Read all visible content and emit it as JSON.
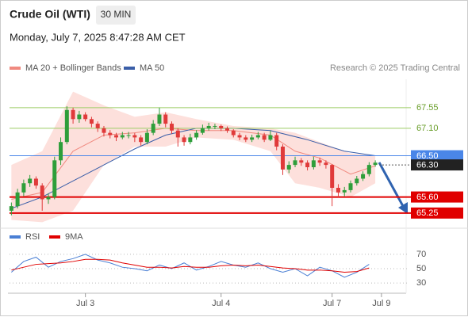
{
  "chart_data": {
    "type": "candlestick",
    "title": "Crude Oil (WTI)",
    "timeframe": "30 MIN",
    "subtitle": "Monday, July 7, 2025 8:47:28 AM CET",
    "credit": "Research © 2025 Trading Central",
    "up_color": "#2e9e3a",
    "down_color": "#e03a3a",
    "xlim": [
      -0.3,
      64
    ],
    "ylim": [
      64.97,
      68.17
    ],
    "xticks": [
      {
        "value": 12,
        "label": "Jul 3"
      },
      {
        "value": 34,
        "label": "Jul 4"
      },
      {
        "value": 52,
        "label": "Jul 7"
      },
      {
        "value": 60,
        "label": "Jul 9"
      }
    ],
    "ohlc": [
      [
        65.3,
        65.48,
        65.2,
        65.4
      ],
      [
        65.4,
        65.78,
        65.35,
        65.7
      ],
      [
        65.7,
        65.98,
        65.62,
        65.9
      ],
      [
        65.9,
        66.08,
        65.82,
        66.0
      ],
      [
        66.0,
        66.05,
        65.78,
        65.85
      ],
      [
        65.85,
        65.9,
        65.3,
        65.55
      ],
      [
        65.55,
        65.68,
        65.45,
        65.6
      ],
      [
        65.6,
        66.48,
        65.55,
        66.4
      ],
      [
        66.4,
        66.9,
        66.3,
        66.8
      ],
      [
        66.8,
        67.58,
        66.75,
        67.5
      ],
      [
        67.5,
        67.55,
        67.2,
        67.3
      ],
      [
        67.3,
        67.48,
        67.22,
        67.4
      ],
      [
        67.4,
        67.45,
        67.25,
        67.3
      ],
      [
        67.3,
        67.35,
        67.12,
        67.2
      ],
      [
        67.2,
        67.25,
        67.02,
        67.1
      ],
      [
        67.1,
        67.15,
        66.92,
        67.0
      ],
      [
        67.0,
        67.06,
        66.88,
        66.95
      ],
      [
        66.95,
        67.0,
        66.82,
        66.9
      ],
      [
        66.9,
        67.02,
        66.86,
        66.95
      ],
      [
        66.95,
        67.02,
        66.88,
        66.95
      ],
      [
        66.95,
        67.0,
        66.8,
        66.9
      ],
      [
        66.9,
        66.95,
        66.72,
        66.8
      ],
      [
        66.8,
        67.08,
        66.75,
        67.0
      ],
      [
        67.0,
        67.28,
        66.95,
        67.2
      ],
      [
        67.2,
        67.55,
        67.15,
        67.4
      ],
      [
        67.4,
        67.45,
        67.12,
        67.2
      ],
      [
        67.2,
        67.25,
        66.98,
        67.05
      ],
      [
        67.05,
        67.1,
        66.7,
        66.9
      ],
      [
        66.9,
        66.95,
        66.72,
        66.8
      ],
      [
        66.8,
        66.98,
        66.75,
        66.9
      ],
      [
        66.9,
        67.06,
        66.85,
        67.0
      ],
      [
        67.0,
        67.18,
        66.96,
        67.1
      ],
      [
        67.1,
        67.22,
        67.05,
        67.15
      ],
      [
        67.15,
        67.2,
        67.08,
        67.15
      ],
      [
        67.15,
        67.18,
        67.04,
        67.1
      ],
      [
        67.1,
        67.14,
        67.0,
        67.05
      ],
      [
        67.05,
        67.08,
        66.9,
        66.95
      ],
      [
        66.95,
        67.0,
        66.84,
        66.9
      ],
      [
        66.9,
        66.95,
        66.8,
        66.85
      ],
      [
        66.85,
        66.96,
        66.8,
        66.9
      ],
      [
        66.9,
        67.02,
        66.86,
        66.95
      ],
      [
        66.95,
        67.0,
        66.8,
        66.85
      ],
      [
        66.85,
        67.05,
        66.82,
        66.95
      ],
      [
        66.95,
        67.0,
        66.62,
        66.7
      ],
      [
        66.7,
        66.75,
        66.08,
        66.2
      ],
      [
        66.2,
        66.38,
        66.12,
        66.3
      ],
      [
        66.3,
        66.48,
        66.25,
        66.4
      ],
      [
        66.4,
        66.45,
        66.28,
        66.35
      ],
      [
        66.35,
        66.4,
        66.18,
        66.25
      ],
      [
        66.25,
        66.48,
        66.2,
        66.4
      ],
      [
        66.4,
        66.46,
        66.28,
        66.35
      ],
      [
        66.35,
        66.4,
        66.22,
        66.3
      ],
      [
        66.3,
        66.32,
        65.4,
        65.8
      ],
      [
        65.8,
        65.88,
        65.58,
        65.7
      ],
      [
        65.7,
        65.82,
        65.62,
        65.75
      ],
      [
        65.75,
        65.96,
        65.7,
        65.9
      ],
      [
        65.9,
        66.06,
        65.85,
        66.0
      ],
      [
        66.0,
        66.16,
        65.95,
        66.1
      ],
      [
        66.1,
        66.36,
        66.05,
        66.3
      ],
      [
        66.3,
        66.4,
        66.26,
        66.35
      ]
    ],
    "series": [
      {
        "name": "MA 20 + Bollinger Bands",
        "color": "#f08a80",
        "band_color": "#fde0dc",
        "x": [
          0,
          5,
          10,
          15,
          20,
          25,
          30,
          36,
          42,
          46,
          50,
          55,
          59
        ],
        "values": [
          65.55,
          65.7,
          66.6,
          66.95,
          67.0,
          67.1,
          67.05,
          67.05,
          66.95,
          66.6,
          66.45,
          66.1,
          66.28
        ],
        "upper": [
          66.3,
          66.6,
          67.9,
          67.6,
          67.35,
          67.45,
          67.3,
          67.15,
          67.1,
          67.0,
          66.8,
          66.55,
          66.5
        ],
        "lower": [
          65.1,
          65.05,
          65.3,
          66.3,
          66.7,
          66.7,
          66.9,
          66.85,
          66.6,
          65.9,
          65.8,
          65.6,
          65.9
        ]
      },
      {
        "name": "MA 50",
        "color": "#3a5ea8",
        "x": [
          0,
          5,
          10,
          15,
          20,
          25,
          30,
          36,
          42,
          48,
          54,
          59
        ],
        "values": [
          65.35,
          65.6,
          65.95,
          66.3,
          66.65,
          66.95,
          67.1,
          67.1,
          67.05,
          66.85,
          66.6,
          66.5
        ]
      }
    ],
    "levels": [
      {
        "value": 67.55,
        "color": "#9ccc65",
        "style": "text"
      },
      {
        "value": 67.1,
        "label": "67.10",
        "color": "#9ccc65",
        "style": "text"
      },
      {
        "value": 66.5,
        "label": "66.50",
        "color": "#4a86e8",
        "style": "box"
      },
      {
        "value": 66.3,
        "label": "66.30",
        "color": "#222222",
        "style": "dotted"
      },
      {
        "value": 65.6,
        "label": "65.60",
        "color": "#e00000",
        "style": "box"
      },
      {
        "value": 65.25,
        "color": "#e00000",
        "style": "box"
      }
    ],
    "rsi_panel": {
      "ylim": [
        18,
        82
      ],
      "yticks": [
        70,
        50,
        30
      ],
      "series": [
        {
          "name": "RSI",
          "color": "#4a7fd4",
          "x": [
            0,
            2,
            4,
            6,
            8,
            10,
            12,
            14,
            16,
            18,
            20,
            22,
            24,
            26,
            28,
            30,
            32,
            34,
            36,
            38,
            40,
            42,
            44,
            46,
            48,
            50,
            52,
            54,
            56,
            58
          ],
          "values": [
            45,
            60,
            66,
            52,
            60,
            64,
            70,
            62,
            58,
            52,
            50,
            47,
            55,
            50,
            58,
            48,
            53,
            60,
            55,
            52,
            58,
            50,
            45,
            50,
            40,
            52,
            47,
            38,
            45,
            56
          ]
        },
        {
          "name": "9MA",
          "color": "#e00000",
          "x": [
            0,
            2,
            4,
            6,
            8,
            10,
            12,
            14,
            16,
            18,
            20,
            22,
            24,
            26,
            28,
            30,
            32,
            34,
            36,
            38,
            40,
            42,
            44,
            46,
            48,
            50,
            52,
            54,
            56,
            58
          ],
          "values": [
            48,
            52,
            56,
            57,
            58,
            60,
            63,
            63,
            62,
            58,
            55,
            52,
            52,
            51,
            53,
            52,
            52,
            54,
            55,
            54,
            55,
            53,
            51,
            50,
            48,
            48,
            47,
            45,
            46,
            51
          ]
        }
      ]
    }
  }
}
